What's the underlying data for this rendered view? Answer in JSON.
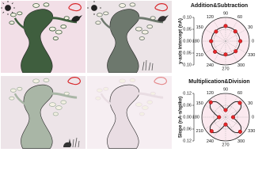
{
  "chart_data": [
    {
      "type": "polar",
      "title": "Addition&Subtraction",
      "ylabel": "y-axis intercept (nA)",
      "color": "#e8262a",
      "theta": [
        0,
        45,
        90,
        135,
        180,
        225,
        270,
        315
      ],
      "values": [
        0.062,
        0.058,
        0.064,
        0.057,
        0.061,
        0.063,
        0.056,
        0.06
      ],
      "fit_theta": [
        0,
        30,
        60,
        90,
        120,
        150,
        180,
        210,
        240,
        270,
        300,
        330
      ],
      "fit_values": [
        0.06,
        0.06,
        0.06,
        0.06,
        0.06,
        0.06,
        0.06,
        0.06,
        0.06,
        0.06,
        0.06,
        0.06
      ],
      "rlim": [
        0,
        0.1
      ],
      "rticks": [
        {
          "value": 0,
          "label": "0.00"
        },
        {
          "value": 0.05,
          "label": "0.05"
        },
        {
          "value": 0.1,
          "label": "0.10"
        }
      ],
      "angle_ticks": [
        0,
        30,
        60,
        90,
        120,
        150,
        180,
        210,
        240,
        270,
        300,
        330
      ],
      "grid": true
    },
    {
      "type": "polar",
      "title": "Multiplication&Division",
      "ylabel": "Slope (nA·s/spike)",
      "color": "#e8262a",
      "theta": [
        0,
        45,
        90,
        135,
        180,
        225,
        270,
        315
      ],
      "values": [
        0.038,
        0.102,
        0.036,
        0.106,
        0.033,
        0.1,
        0.037,
        0.104
      ],
      "fit_theta": [
        0,
        15,
        30,
        45,
        60,
        75,
        90,
        105,
        120,
        135,
        150,
        165,
        180,
        195,
        210,
        225,
        240,
        255,
        270,
        285,
        300,
        315,
        330,
        345
      ],
      "fit_values": [
        0.035,
        0.0525,
        0.0875,
        0.105,
        0.0875,
        0.0525,
        0.035,
        0.0525,
        0.0875,
        0.105,
        0.0875,
        0.0525,
        0.035,
        0.0525,
        0.0875,
        0.105,
        0.0875,
        0.0525,
        0.035,
        0.0525,
        0.0875,
        0.105,
        0.0875,
        0.0525
      ],
      "rlim": [
        0,
        0.12
      ],
      "rticks": [
        {
          "value": 0,
          "label": "0.00"
        },
        {
          "value": 0.06,
          "label": "0.06"
        },
        {
          "value": 0.12,
          "label": "0.12"
        }
      ],
      "angle_ticks": [
        0,
        30,
        60,
        90,
        120,
        150,
        180,
        210,
        240,
        270,
        300,
        330
      ],
      "grid": true
    }
  ]
}
